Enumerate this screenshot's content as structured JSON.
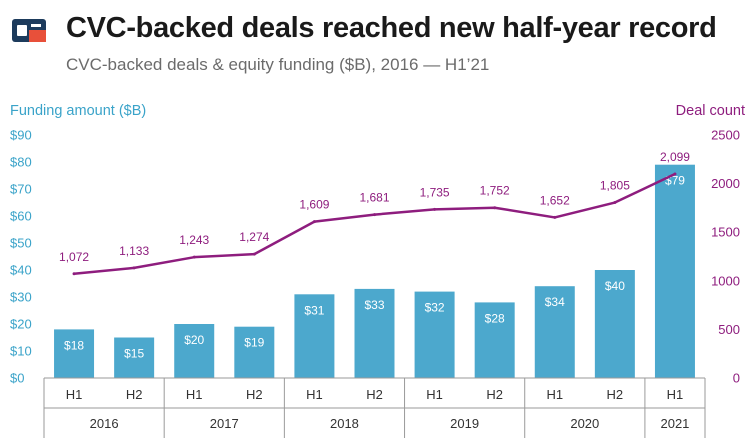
{
  "header": {
    "title": "CVC-backed deals reached new half-year record",
    "subtitle": "CVC-backed deals & equity funding ($B), 2016 — H1’21",
    "logo_icon": "cb-insights-logo-icon"
  },
  "colors": {
    "bar": "#4ca8cd",
    "line": "#8e1d7e",
    "left_axis": "#3aa3c9",
    "right_axis": "#8e1d7e",
    "logo_blue": "#1d3b5c",
    "logo_red": "#e8503a"
  },
  "chart_data": {
    "type": "bar",
    "categories": [
      "H1",
      "H2",
      "H1",
      "H2",
      "H1",
      "H2",
      "H1",
      "H2",
      "H1",
      "H2",
      "H1"
    ],
    "years": [
      {
        "label": "2016",
        "span": 2
      },
      {
        "label": "2017",
        "span": 2
      },
      {
        "label": "2018",
        "span": 2
      },
      {
        "label": "2019",
        "span": 2
      },
      {
        "label": "2020",
        "span": 2
      },
      {
        "label": "2021",
        "span": 1
      }
    ],
    "series": [
      {
        "name": "Funding amount ($B)",
        "type": "bar",
        "axis": "left",
        "values": [
          18,
          15,
          20,
          19,
          31,
          33,
          32,
          28,
          34,
          40,
          79
        ],
        "labels": [
          "$18",
          "$15",
          "$20",
          "$19",
          "$31",
          "$33",
          "$32",
          "$28",
          "$34",
          "$40",
          "$79"
        ]
      },
      {
        "name": "Deal count",
        "type": "line",
        "axis": "right",
        "values": [
          1072,
          1133,
          1243,
          1274,
          1609,
          1681,
          1735,
          1752,
          1652,
          1805,
          2099
        ],
        "labels": [
          "1,072",
          "1,133",
          "1,243",
          "1,274",
          "1,609",
          "1,681",
          "1,735",
          "1,752",
          "1,652",
          "1,805",
          "2,099"
        ]
      }
    ],
    "ylabel_left": "Funding amount ($B)",
    "ylabel_right": "Deal count",
    "ylim_left": [
      0,
      90
    ],
    "ylim_right": [
      0,
      2500
    ],
    "yticks_left": [
      "$0",
      "$10",
      "$20",
      "$30",
      "$40",
      "$50",
      "$60",
      "$70",
      "$80",
      "$90"
    ],
    "yticks_right": [
      "0",
      "500",
      "1000",
      "1500",
      "2000",
      "2500"
    ],
    "grid": false
  }
}
